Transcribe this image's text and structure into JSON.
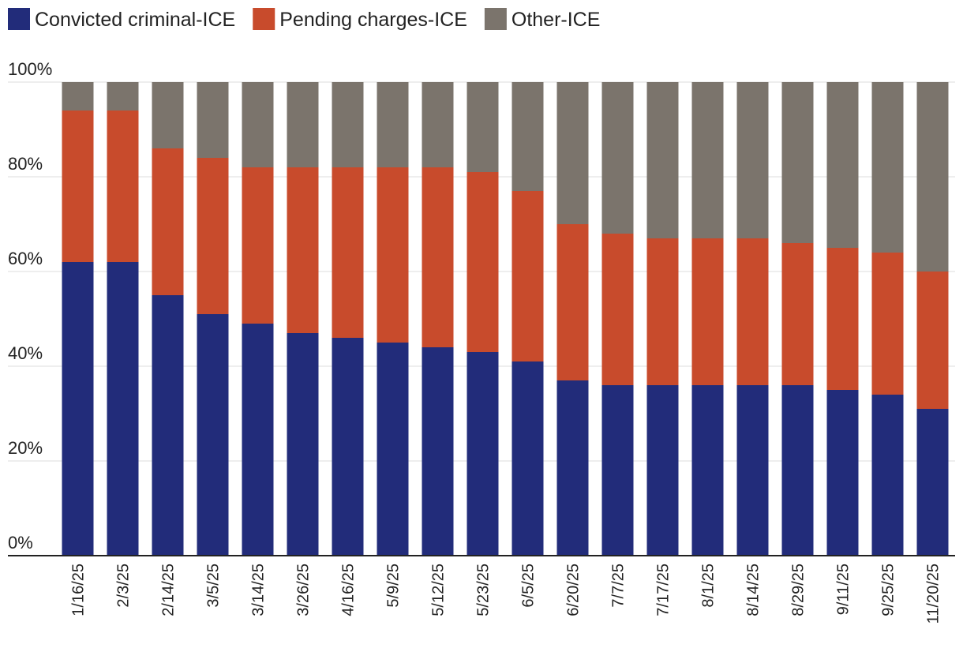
{
  "chart_data": {
    "type": "stacked-bar",
    "categories": [
      "1/16/25",
      "2/3/25",
      "2/14/25",
      "3/5/25",
      "3/14/25",
      "3/26/25",
      "4/16/25",
      "5/9/25",
      "5/12/25",
      "5/23/25",
      "6/5/25",
      "6/20/25",
      "7/7/25",
      "7/17/25",
      "8/1/25",
      "8/14/25",
      "8/29/25",
      "9/11/25",
      "9/25/25",
      "11/20/25"
    ],
    "series": [
      {
        "name": "Convicted criminal-ICE",
        "color": "#222c7a",
        "values": [
          62,
          62,
          55,
          51,
          49,
          47,
          46,
          45,
          44,
          43,
          41,
          37,
          36,
          36,
          36,
          36,
          36,
          35,
          34,
          31
        ]
      },
      {
        "name": "Pending charges-ICE",
        "color": "#c84b2c",
        "values": [
          32,
          32,
          31,
          33,
          33,
          35,
          36,
          37,
          38,
          38,
          36,
          33,
          32,
          31,
          31,
          31,
          30,
          30,
          30,
          29
        ]
      },
      {
        "name": "Other-ICE",
        "color": "#7b746c",
        "values": [
          6,
          6,
          14,
          16,
          18,
          18,
          18,
          18,
          18,
          19,
          23,
          30,
          32,
          33,
          33,
          33,
          34,
          35,
          36,
          40
        ]
      }
    ],
    "ylim": [
      0,
      100
    ],
    "yticks": [
      {
        "value": 0,
        "label": "0%"
      },
      {
        "value": 20,
        "label": "20%"
      },
      {
        "value": 40,
        "label": "40%"
      },
      {
        "value": 60,
        "label": "60%"
      },
      {
        "value": 80,
        "label": "80%"
      },
      {
        "value": 100,
        "label": "100%"
      }
    ],
    "grid": true
  }
}
